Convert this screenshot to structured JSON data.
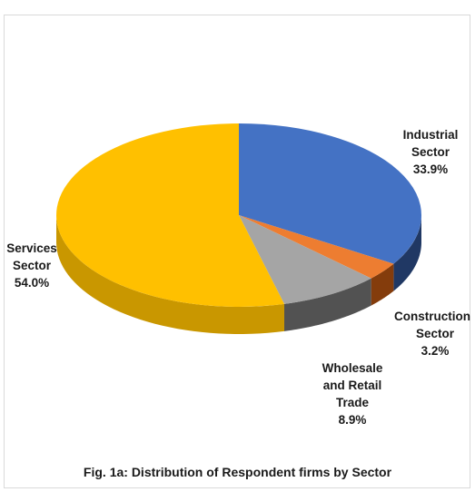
{
  "chart_data": {
    "type": "pie",
    "title": "Fig. 1a: Distribution of Respondent firms by Sector",
    "legend": "none",
    "style": "3d",
    "slices": [
      {
        "name": "Industrial Sector",
        "value": 33.9,
        "label_lines": [
          "Industrial",
          "Sector",
          "33.9%"
        ],
        "color": "#4472c4",
        "side_color": "#203864"
      },
      {
        "name": "Construction Sector",
        "value": 3.2,
        "label_lines": [
          "Construction",
          "Sector",
          "3.2%"
        ],
        "color": "#ed7d31",
        "side_color": "#843c0c"
      },
      {
        "name": "Wholesale and Retail Trade",
        "value": 8.9,
        "label_lines": [
          "Wholesale",
          "and Retail",
          "Trade",
          "8.9%"
        ],
        "color": "#a5a5a5",
        "side_color": "#525252"
      },
      {
        "name": "Services Sector",
        "value": 54.0,
        "label_lines": [
          "Services",
          "Sector",
          "54.0%"
        ],
        "color": "#ffc000",
        "side_color": "#c99700"
      }
    ]
  }
}
